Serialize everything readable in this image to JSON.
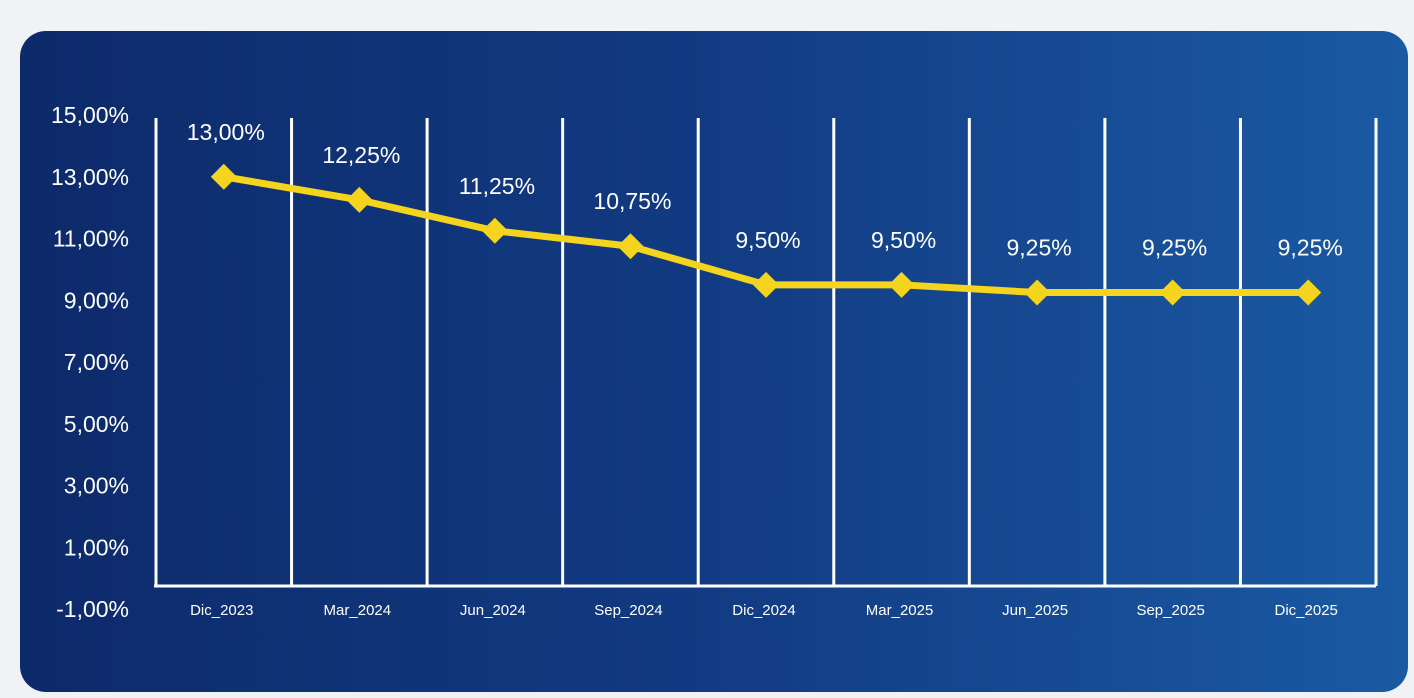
{
  "chart_data": {
    "type": "line",
    "title": "",
    "xlabel": "",
    "ylabel": "",
    "categories": [
      "Dic_2023",
      "Mar_2024",
      "Jun_2024",
      "Sep_2024",
      "Dic_2024",
      "Mar_2025",
      "Jun_2025",
      "Sep_2025",
      "Dic_2025"
    ],
    "series": [
      {
        "values": [
          13.0,
          12.25,
          11.25,
          10.75,
          9.5,
          9.5,
          9.25,
          9.25,
          9.25
        ],
        "labels": [
          "13,00%",
          "12,25%",
          "11,25%",
          "10,75%",
          "9,50%",
          "9,50%",
          "9,25%",
          "9,25%",
          "9,25%"
        ]
      }
    ],
    "yticks": [
      "15,00%",
      "13,00%",
      "11,00%",
      "9,00%",
      "7,00%",
      "5,00%",
      "3,00%",
      "1,00%",
      "-1,00%"
    ],
    "ylim": [
      -1,
      15
    ],
    "grid": "vertical",
    "legend": "none",
    "colors": {
      "line": "#f4d41c",
      "background": "#123b83",
      "grid": "#ffffff",
      "text": "#ffffff"
    }
  }
}
